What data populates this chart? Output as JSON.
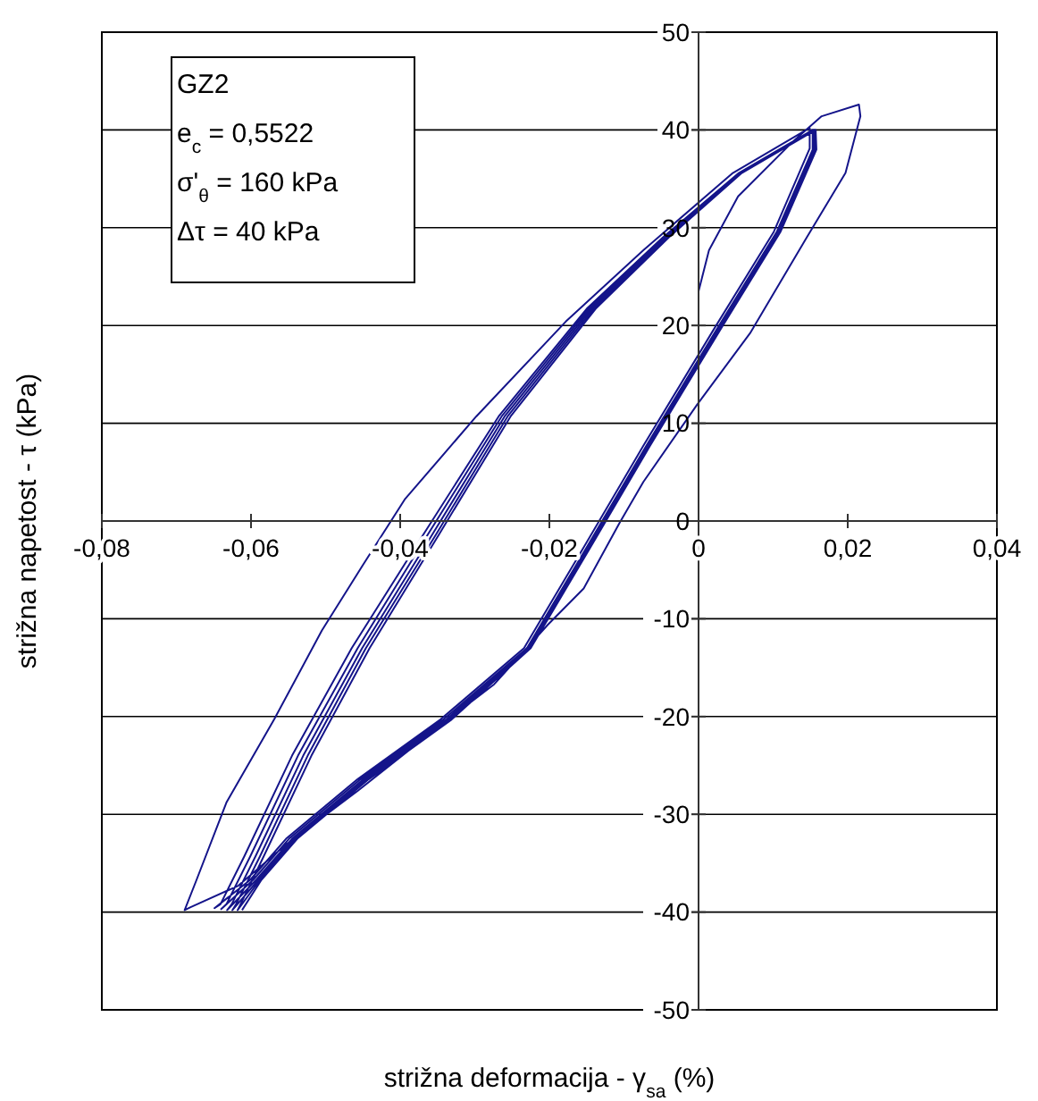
{
  "chart_data": {
    "type": "line",
    "xlabel": "strižna deformacija - γ$_{sa}$ (%)",
    "ylabel": "strižna napetost -  τ (kPa)",
    "annotations": [
      "GZ2",
      "e$_{c}$ = 0,5522",
      "σ'$_{θ}$ = 160 kPa",
      "Δτ = 40 kPa"
    ],
    "xlim": [
      -0.08,
      0.04
    ],
    "xticks": [
      {
        "value": -0.08,
        "label": "-0,08"
      },
      {
        "value": -0.06,
        "label": "-0,06"
      },
      {
        "value": -0.04,
        "label": "-0,04"
      },
      {
        "value": -0.02,
        "label": "-0,02"
      },
      0,
      {
        "value": 0.02,
        "label": "0,02"
      },
      {
        "value": 0.04,
        "label": "0,04"
      }
    ],
    "ylim": [
      -50,
      50
    ],
    "yticks": [
      -50,
      -40,
      -30,
      -20,
      -10,
      0,
      10,
      20,
      30,
      40,
      50
    ],
    "grid": "y",
    "marker": "none",
    "line_style": "solid",
    "series": [
      {
        "color": "#14148a",
        "x": [
          0,
          0.0014,
          0.0053,
          0.0125,
          0.0165,
          0.0215,
          0.0217,
          0.0197,
          0.0145,
          0.0069,
          -0.0002,
          -0.0074,
          -0.0106,
          -0.0154,
          -0.0202,
          -0.0274,
          -0.0346,
          -0.0457,
          -0.0553,
          -0.0617,
          -0.0681,
          -0.0689,
          -0.0673,
          -0.0633,
          -0.0569,
          -0.0505,
          -0.045,
          -0.0394,
          -0.0298,
          -0.0178,
          -0.0074,
          0.0046,
          0.0149,
          0.0149,
          0.0101,
          0.0022,
          -0.0074,
          -0.0154,
          -0.0234,
          -0.0346,
          -0.0457,
          -0.0553,
          -0.0601,
          -0.0649,
          -0.0641,
          -0.0609,
          -0.0545,
          -0.0465,
          -0.037,
          -0.0268,
          -0.015,
          -0.0048,
          0.0054,
          0.0153,
          0.0153,
          0.0105,
          0.0026,
          -0.007,
          -0.015,
          -0.023,
          -0.0342,
          -0.0453,
          -0.0549,
          -0.0597,
          -0.064,
          -0.0633,
          -0.0601,
          -0.0537,
          -0.0457,
          -0.0364,
          -0.0264,
          -0.0147,
          -0.0046,
          0.0055,
          0.0154,
          0.0155,
          0.0107,
          0.0028,
          -0.0068,
          -0.0148,
          -0.0228,
          -0.0338,
          -0.0449,
          -0.0545,
          -0.0593,
          -0.0632,
          -0.0626,
          -0.0594,
          -0.053,
          -0.0451,
          -0.0358,
          -0.026,
          -0.0144,
          -0.0044,
          0.0056,
          0.0155,
          0.0156,
          0.0108,
          0.0029,
          -0.0067,
          -0.0147,
          -0.0227,
          -0.0335,
          -0.0446,
          -0.0542,
          -0.059,
          -0.0625,
          -0.062,
          -0.0588,
          -0.0524,
          -0.0446,
          -0.0353,
          -0.0256,
          -0.0141,
          -0.0042,
          0.0057,
          0.0156,
          0.0157,
          0.0109,
          0.003,
          -0.0066,
          -0.0146,
          -0.0226,
          -0.0333,
          -0.0444,
          -0.054,
          -0.0588,
          -0.0618,
          -0.0614,
          -0.0583,
          -0.0519,
          -0.0441,
          -0.0349,
          -0.0252,
          -0.0138,
          -0.004,
          0.0058,
          0.0157,
          0.0158,
          0.011,
          0.0031,
          -0.0065,
          -0.0145,
          -0.0225,
          -0.0331,
          -0.0442,
          -0.0538,
          -0.0586,
          -0.0612
        ],
        "values": [
          23.5,
          27.7,
          33.2,
          38.7,
          41.4,
          42.6,
          41.4,
          35.6,
          29.0,
          19.2,
          11.9,
          4.0,
          -0.2,
          -6.9,
          -10.6,
          -16.7,
          -20.9,
          -27.6,
          -33.1,
          -37.3,
          -39.5,
          -39.8,
          -36.7,
          -28.8,
          -20.3,
          -11.2,
          -4.5,
          2.2,
          10.7,
          20.4,
          27.7,
          35.6,
          40.2,
          38.1,
          29.6,
          19.8,
          7.7,
          -2.7,
          -13.0,
          -20.3,
          -26.4,
          -32.5,
          -36.7,
          -39.6,
          -39.2,
          -34.3,
          -24.0,
          -13.0,
          -1.5,
          10.7,
          21.7,
          29.0,
          35.6,
          40.0,
          38.0,
          29.6,
          19.8,
          7.7,
          -2.7,
          -13.0,
          -20.3,
          -26.4,
          -32.5,
          -36.7,
          -39.7,
          -39.2,
          -34.3,
          -24.0,
          -13.0,
          -1.5,
          10.7,
          21.7,
          29.0,
          35.6,
          40.0,
          38.0,
          29.6,
          19.8,
          7.7,
          -2.7,
          -13.0,
          -20.3,
          -26.4,
          -32.5,
          -36.7,
          -39.8,
          -39.2,
          -34.3,
          -24.0,
          -13.0,
          -1.5,
          10.7,
          21.7,
          29.0,
          35.6,
          40.0,
          38.0,
          29.6,
          19.8,
          7.7,
          -2.7,
          -13.0,
          -20.3,
          -26.4,
          -32.5,
          -36.7,
          -39.8,
          -39.2,
          -34.3,
          -24.0,
          -13.0,
          -1.5,
          10.7,
          21.7,
          29.0,
          35.6,
          40.0,
          38.0,
          29.6,
          19.8,
          7.7,
          -2.7,
          -13.0,
          -20.3,
          -26.4,
          -32.5,
          -36.7,
          -39.8,
          -39.2,
          -34.3,
          -24.0,
          -13.0,
          -1.5,
          10.7,
          21.7,
          29.0,
          35.6,
          40.0,
          38.0,
          29.6,
          19.8,
          7.7,
          -2.7,
          -13.0,
          -20.3,
          -26.4,
          -32.5,
          -36.7,
          -39.8
        ]
      }
    ]
  }
}
